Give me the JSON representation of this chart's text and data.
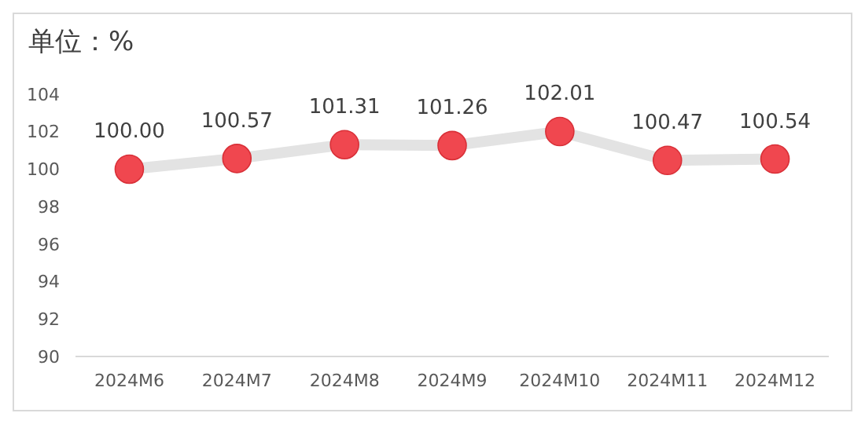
{
  "chart_data": {
    "type": "line",
    "title": "单位：%",
    "categories": [
      "2024M6",
      "2024M7",
      "2024M8",
      "2024M9",
      "2024M10",
      "2024M11",
      "2024M12"
    ],
    "series": [
      {
        "color": "#e3e3e3",
        "colors": [
          "#f0474f",
          "#f0474f",
          "#f0474f",
          "#f0474f",
          "#f0474f",
          "#f0474f",
          "#f0474f"
        ],
        "values": [
          100.0,
          100.57,
          101.31,
          101.26,
          102.01,
          100.47,
          100.54
        ],
        "value_labels": [
          "100.00",
          "100.57",
          "101.31",
          "101.26",
          "102.01",
          "100.47",
          "100.54"
        ]
      }
    ],
    "ylim": [
      90,
      104
    ],
    "yticks": [
      90,
      92,
      94,
      96,
      98,
      100,
      102,
      104
    ],
    "marker": "circle"
  }
}
